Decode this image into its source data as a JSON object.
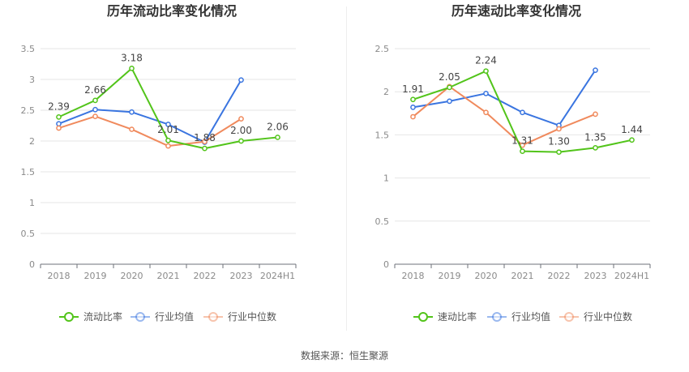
{
  "chart_data": [
    {
      "type": "line",
      "title": "历年流动比率变化情况",
      "categories": [
        "2018",
        "2019",
        "2020",
        "2021",
        "2022",
        "2023",
        "2024H1"
      ],
      "ylim": [
        0,
        3.5
      ],
      "yticks": [
        "0",
        "0.5",
        "1",
        "1.5",
        "2",
        "2.5",
        "3",
        "3.5"
      ],
      "grid": true,
      "legend_position": "bottom",
      "series": [
        {
          "name": "流动比率",
          "color": "#52c41a",
          "values": [
            2.39,
            2.66,
            3.18,
            2.01,
            1.88,
            2.0,
            2.06
          ],
          "labels": [
            "2.39",
            "2.66",
            "3.18",
            "2.01",
            "1.88",
            "2.00",
            "2.06"
          ]
        },
        {
          "name": "行业均值",
          "color": "#3a75e0",
          "values": [
            2.28,
            2.51,
            2.47,
            2.27,
            1.98,
            2.99,
            null
          ]
        },
        {
          "name": "行业中位数",
          "color": "#f08a5d",
          "values": [
            2.21,
            2.4,
            2.19,
            1.92,
            1.99,
            2.36,
            null
          ]
        }
      ]
    },
    {
      "type": "line",
      "title": "历年速动比率变化情况",
      "categories": [
        "2018",
        "2019",
        "2020",
        "2021",
        "2022",
        "2023",
        "2024H1"
      ],
      "ylim": [
        0,
        2.5
      ],
      "yticks": [
        "0",
        "0.5",
        "1",
        "1.5",
        "2",
        "2.5"
      ],
      "grid": true,
      "legend_position": "bottom",
      "series": [
        {
          "name": "速动比率",
          "color": "#52c41a",
          "values": [
            1.91,
            2.05,
            2.24,
            1.31,
            1.3,
            1.35,
            1.44
          ],
          "labels": [
            "1.91",
            "2.05",
            "2.24",
            "1.31",
            "1.30",
            "1.35",
            "1.44"
          ]
        },
        {
          "name": "行业均值",
          "color": "#3a75e0",
          "values": [
            1.82,
            1.89,
            1.98,
            1.76,
            1.61,
            2.25,
            null
          ]
        },
        {
          "name": "行业中位数",
          "color": "#f08a5d",
          "values": [
            1.71,
            2.06,
            1.76,
            1.38,
            1.57,
            1.74,
            null
          ]
        }
      ]
    }
  ],
  "footer": {
    "source": "数据来源：恒生聚源"
  }
}
